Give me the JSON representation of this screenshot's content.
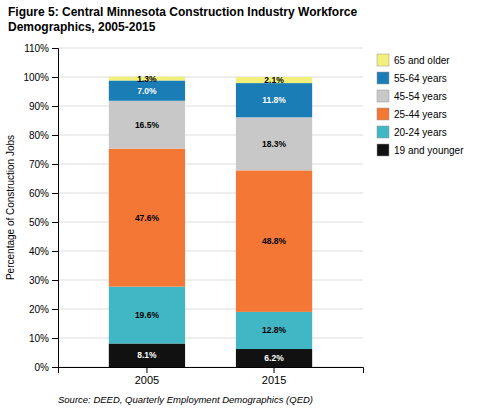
{
  "chart_data": {
    "type": "bar",
    "title": "Figure 5: Central Minnesota Construction Industry Workforce",
    "subtitle": "Demographics, 2005-2015",
    "y_label": "Percentage of Construction Jobs",
    "annotations": [
      "Source: DEED, Quarterly Employment Demographics (QED)"
    ],
    "categories": [
      "2005",
      "2015"
    ],
    "series": [
      {
        "name": "19 and younger",
        "color": "#111111",
        "values": [
          8.1,
          6.2
        ],
        "value_labels": [
          "8.1%",
          "6.2%"
        ]
      },
      {
        "name": "20-24 years",
        "color": "#41b6c4",
        "values": [
          19.6,
          12.8
        ],
        "value_labels": [
          "19.6%",
          "12.8%"
        ]
      },
      {
        "name": "25-44 years",
        "color": "#f47735",
        "values": [
          47.6,
          48.8
        ],
        "value_labels": [
          "47.6%",
          "48.8%"
        ]
      },
      {
        "name": "45-54 years",
        "color": "#c8c8c8",
        "values": [
          16.5,
          18.3
        ],
        "value_labels": [
          "16.5%",
          "18.3%"
        ]
      },
      {
        "name": "55-64 years",
        "color": "#1a7db5",
        "values": [
          7.0,
          11.8
        ],
        "value_labels": [
          "7.0%",
          "11.8%"
        ]
      },
      {
        "name": "65 and older",
        "color": "#f0f07a",
        "values": [
          1.3,
          2.1
        ],
        "value_labels": [
          "1.3%",
          "2.1%"
        ]
      }
    ],
    "stacked": true,
    "data_labels": true,
    "grid": true,
    "legend": "right",
    "ylim": [
      0,
      110
    ],
    "yticks": [
      {
        "value": 0,
        "label": "0%"
      },
      {
        "value": 10,
        "label": "10%"
      },
      {
        "value": 20,
        "label": "20%"
      },
      {
        "value": 30,
        "label": "30%"
      },
      {
        "value": 40,
        "label": "40%"
      },
      {
        "value": 50,
        "label": "50%"
      },
      {
        "value": 60,
        "label": "60%"
      },
      {
        "value": 70,
        "label": "70%"
      },
      {
        "value": 80,
        "label": "80%"
      },
      {
        "value": 90,
        "label": "90%"
      },
      {
        "value": 100,
        "label": "100%"
      },
      {
        "value": 110,
        "label": "110%"
      }
    ]
  }
}
